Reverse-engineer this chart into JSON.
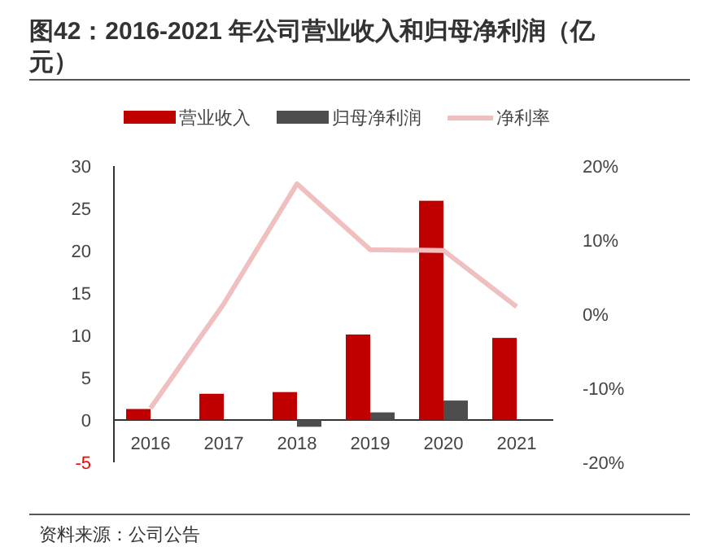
{
  "chart_data": {
    "type": "bar",
    "title": "图42：2016-2021 年公司营业收入和归母净利润（亿元）",
    "categories": [
      "2016",
      "2017",
      "2018",
      "2019",
      "2020",
      "2021"
    ],
    "series": [
      {
        "name": "营业收入",
        "color": "#c00000",
        "values": [
          1.3,
          3.1,
          3.3,
          10.1,
          25.9,
          9.7
        ]
      },
      {
        "name": "归母净利润",
        "color": "#4d4d4d",
        "values": [
          null,
          null,
          -0.8,
          0.9,
          2.3,
          null
        ]
      },
      {
        "name": "净利率",
        "type": "line",
        "axis": "y2",
        "color": "#f0c0c0",
        "values": [
          -12.7,
          1.4,
          17.6,
          8.7,
          8.6,
          1.0
        ]
      }
    ],
    "ylim": [
      -5,
      30
    ],
    "yticks": [
      -5,
      0,
      5,
      10,
      15,
      20,
      25,
      30
    ],
    "y2lim": [
      -20,
      20
    ],
    "y2ticks": [
      {
        "value": -20,
        "label": "-20%"
      },
      {
        "value": -10,
        "label": "-10%"
      },
      {
        "value": 0,
        "label": "0%"
      },
      {
        "value": 10,
        "label": "10%"
      },
      {
        "value": 20,
        "label": "20%"
      }
    ],
    "legend": "top",
    "grid": false,
    "annotations": [
      "资料来源：公司公告"
    ]
  }
}
